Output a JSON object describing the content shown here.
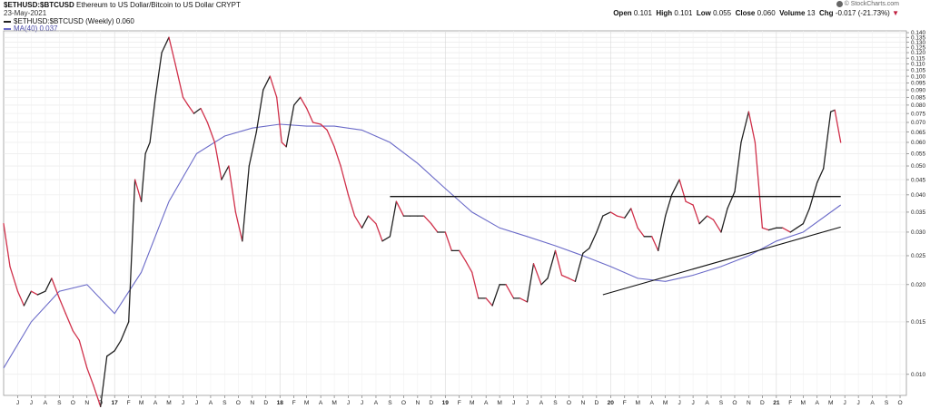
{
  "header": {
    "symbol": "$ETHUSD:$BTCUSD",
    "description": "Ethereum to US Dollar/Bitcoin to US Dollar",
    "exchange": "CRYPT",
    "date": "23-May-2021",
    "legend_price": "$ETHUSD:$BTCUSD (Weekly) 0.060",
    "legend_ma": "MA(40) 0.037",
    "brand": "© StockCharts.com",
    "ohlc": {
      "open_label": "Open",
      "open": "0.101",
      "high_label": "High",
      "high": "0.101",
      "low_label": "Low",
      "low": "0.055",
      "close_label": "Close",
      "close": "0.060",
      "volume_label": "Volume",
      "volume": "13",
      "chg_label": "Chg",
      "chg": "-0.017 (-21.73%)",
      "chg_arrow": "▼"
    }
  },
  "colors": {
    "up": "#222222",
    "down": "#d0304a",
    "ma": "#6a6ac8",
    "trendline": "#111111",
    "grid": "#e6e6e6"
  },
  "chart_data": {
    "type": "line",
    "scale": "log",
    "ylim": [
      0.0085,
      0.142
    ],
    "grid": true,
    "y_ticks": [
      "0.140",
      "0.135",
      "0.130",
      "0.125",
      "0.120",
      "0.115",
      "0.110",
      "0.105",
      "0.100",
      "0.095",
      "0.090",
      "0.085",
      "0.080",
      "0.075",
      "0.070",
      "0.065",
      "0.060",
      "0.055",
      "0.050",
      "0.045",
      "0.040",
      "0.035",
      "0.030",
      "0.025",
      "0.020",
      "0.015",
      "0.010"
    ],
    "x_axis_labels": [
      "J",
      "J",
      "A",
      "S",
      "O",
      "N",
      "D",
      "17",
      "F",
      "M",
      "A",
      "M",
      "J",
      "J",
      "A",
      "S",
      "O",
      "N",
      "D",
      "18",
      "F",
      "M",
      "A",
      "M",
      "J",
      "J",
      "A",
      "S",
      "O",
      "N",
      "D",
      "19",
      "F",
      "M",
      "A",
      "M",
      "J",
      "J",
      "A",
      "S",
      "O",
      "N",
      "D",
      "20",
      "F",
      "M",
      "A",
      "M",
      "J",
      "J",
      "A",
      "S",
      "O",
      "N",
      "D",
      "21",
      "F",
      "M",
      "A",
      "M",
      "J",
      "J",
      "A",
      "S",
      "O"
    ],
    "x_year_labels": [
      "17",
      "18",
      "19",
      "20",
      "21"
    ],
    "series": [
      {
        "name": "$ETHUSD:$BTCUSD (Weekly)",
        "x": [
          "2016-05-01",
          "2016-05-15",
          "2016-06-01",
          "2016-06-15",
          "2016-07-01",
          "2016-07-15",
          "2016-08-01",
          "2016-08-15",
          "2016-09-01",
          "2016-09-15",
          "2016-10-01",
          "2016-10-15",
          "2016-11-01",
          "2016-11-15",
          "2016-12-01",
          "2016-12-15",
          "2017-01-01",
          "2017-01-15",
          "2017-02-01",
          "2017-02-15",
          "2017-03-01",
          "2017-03-10",
          "2017-03-20",
          "2017-04-01",
          "2017-04-15",
          "2017-05-01",
          "2017-05-15",
          "2017-06-01",
          "2017-06-12",
          "2017-06-25",
          "2017-07-10",
          "2017-07-25",
          "2017-08-10",
          "2017-08-25",
          "2017-09-10",
          "2017-09-25",
          "2017-10-10",
          "2017-10-25",
          "2017-11-10",
          "2017-11-25",
          "2017-12-10",
          "2017-12-25",
          "2018-01-05",
          "2018-01-15",
          "2018-02-01",
          "2018-02-15",
          "2018-03-01",
          "2018-03-15",
          "2018-04-01",
          "2018-04-15",
          "2018-05-01",
          "2018-05-15",
          "2018-06-01",
          "2018-06-15",
          "2018-07-01",
          "2018-07-15",
          "2018-08-01",
          "2018-08-15",
          "2018-09-01",
          "2018-09-15",
          "2018-10-01",
          "2018-10-15",
          "2018-11-01",
          "2018-11-15",
          "2018-12-01",
          "2018-12-15",
          "2019-01-01",
          "2019-01-15",
          "2019-02-01",
          "2019-02-15",
          "2019-03-01",
          "2019-03-15",
          "2019-04-01",
          "2019-04-15",
          "2019-05-01",
          "2019-05-15",
          "2019-06-01",
          "2019-06-15",
          "2019-07-01",
          "2019-07-15",
          "2019-08-01",
          "2019-08-15",
          "2019-09-01",
          "2019-09-15",
          "2019-10-01",
          "2019-10-15",
          "2019-11-01",
          "2019-11-15",
          "2019-12-01",
          "2019-12-15",
          "2020-01-01",
          "2020-01-15",
          "2020-02-01",
          "2020-02-15",
          "2020-03-01",
          "2020-03-15",
          "2020-04-01",
          "2020-04-15",
          "2020-05-01",
          "2020-05-15",
          "2020-06-01",
          "2020-06-15",
          "2020-07-01",
          "2020-07-15",
          "2020-08-01",
          "2020-08-15",
          "2020-09-01",
          "2020-09-15",
          "2020-10-01",
          "2020-10-15",
          "2020-11-01",
          "2020-11-15",
          "2020-12-01",
          "2020-12-15",
          "2021-01-01",
          "2021-01-15",
          "2021-02-01",
          "2021-02-15",
          "2021-03-01",
          "2021-03-15",
          "2021-04-01",
          "2021-04-15",
          "2021-05-01",
          "2021-05-10",
          "2021-05-23"
        ],
        "values": [
          0.032,
          0.023,
          0.019,
          0.017,
          0.019,
          0.0185,
          0.019,
          0.021,
          0.018,
          0.016,
          0.014,
          0.013,
          0.0105,
          0.0092,
          0.0078,
          0.0115,
          0.012,
          0.013,
          0.015,
          0.045,
          0.038,
          0.055,
          0.06,
          0.085,
          0.12,
          0.135,
          0.11,
          0.085,
          0.08,
          0.075,
          0.078,
          0.07,
          0.06,
          0.045,
          0.05,
          0.035,
          0.028,
          0.05,
          0.065,
          0.09,
          0.1,
          0.085,
          0.06,
          0.058,
          0.08,
          0.085,
          0.078,
          0.07,
          0.069,
          0.066,
          0.058,
          0.05,
          0.04,
          0.034,
          0.031,
          0.034,
          0.032,
          0.028,
          0.029,
          0.038,
          0.034,
          0.034,
          0.034,
          0.034,
          0.032,
          0.03,
          0.03,
          0.026,
          0.026,
          0.024,
          0.022,
          0.018,
          0.018,
          0.017,
          0.02,
          0.02,
          0.018,
          0.018,
          0.0175,
          0.0235,
          0.02,
          0.021,
          0.026,
          0.0215,
          0.021,
          0.0205,
          0.0255,
          0.0265,
          0.03,
          0.034,
          0.035,
          0.034,
          0.0335,
          0.036,
          0.031,
          0.029,
          0.029,
          0.026,
          0.034,
          0.04,
          0.045,
          0.038,
          0.037,
          0.032,
          0.034,
          0.033,
          0.03,
          0.036,
          0.041,
          0.06,
          0.076,
          0.06,
          0.031,
          0.0305,
          0.031,
          0.031,
          0.03,
          0.031,
          0.032,
          0.036,
          0.044,
          0.049,
          0.076,
          0.077,
          0.06
        ]
      },
      {
        "name": "MA(40)",
        "x": [
          "2016-05-01",
          "2016-07-01",
          "2016-09-01",
          "2016-11-01",
          "2017-01-01",
          "2017-03-01",
          "2017-05-01",
          "2017-07-01",
          "2017-09-01",
          "2017-11-01",
          "2018-01-01",
          "2018-03-01",
          "2018-05-01",
          "2018-07-01",
          "2018-09-01",
          "2018-11-01",
          "2019-01-01",
          "2019-03-01",
          "2019-05-01",
          "2019-07-01",
          "2019-09-01",
          "2019-11-01",
          "2020-01-01",
          "2020-03-01",
          "2020-05-01",
          "2020-07-01",
          "2020-09-01",
          "2020-11-01",
          "2021-01-01",
          "2021-03-01",
          "2021-05-23"
        ],
        "values": [
          0.0105,
          0.015,
          0.019,
          0.02,
          0.016,
          0.022,
          0.038,
          0.055,
          0.063,
          0.067,
          0.069,
          0.068,
          0.068,
          0.066,
          0.06,
          0.051,
          0.042,
          0.035,
          0.031,
          0.029,
          0.027,
          0.025,
          0.023,
          0.021,
          0.0205,
          0.0215,
          0.023,
          0.025,
          0.028,
          0.03,
          0.037
        ]
      }
    ],
    "annotations": [
      {
        "type": "horizontal-line",
        "value": 0.0395,
        "from": "2018-09-01",
        "to": "2021-05-23"
      },
      {
        "type": "trendline",
        "from": [
          "2019-12-15",
          0.0185
        ],
        "to": [
          "2021-05-23",
          0.0312
        ]
      }
    ]
  }
}
